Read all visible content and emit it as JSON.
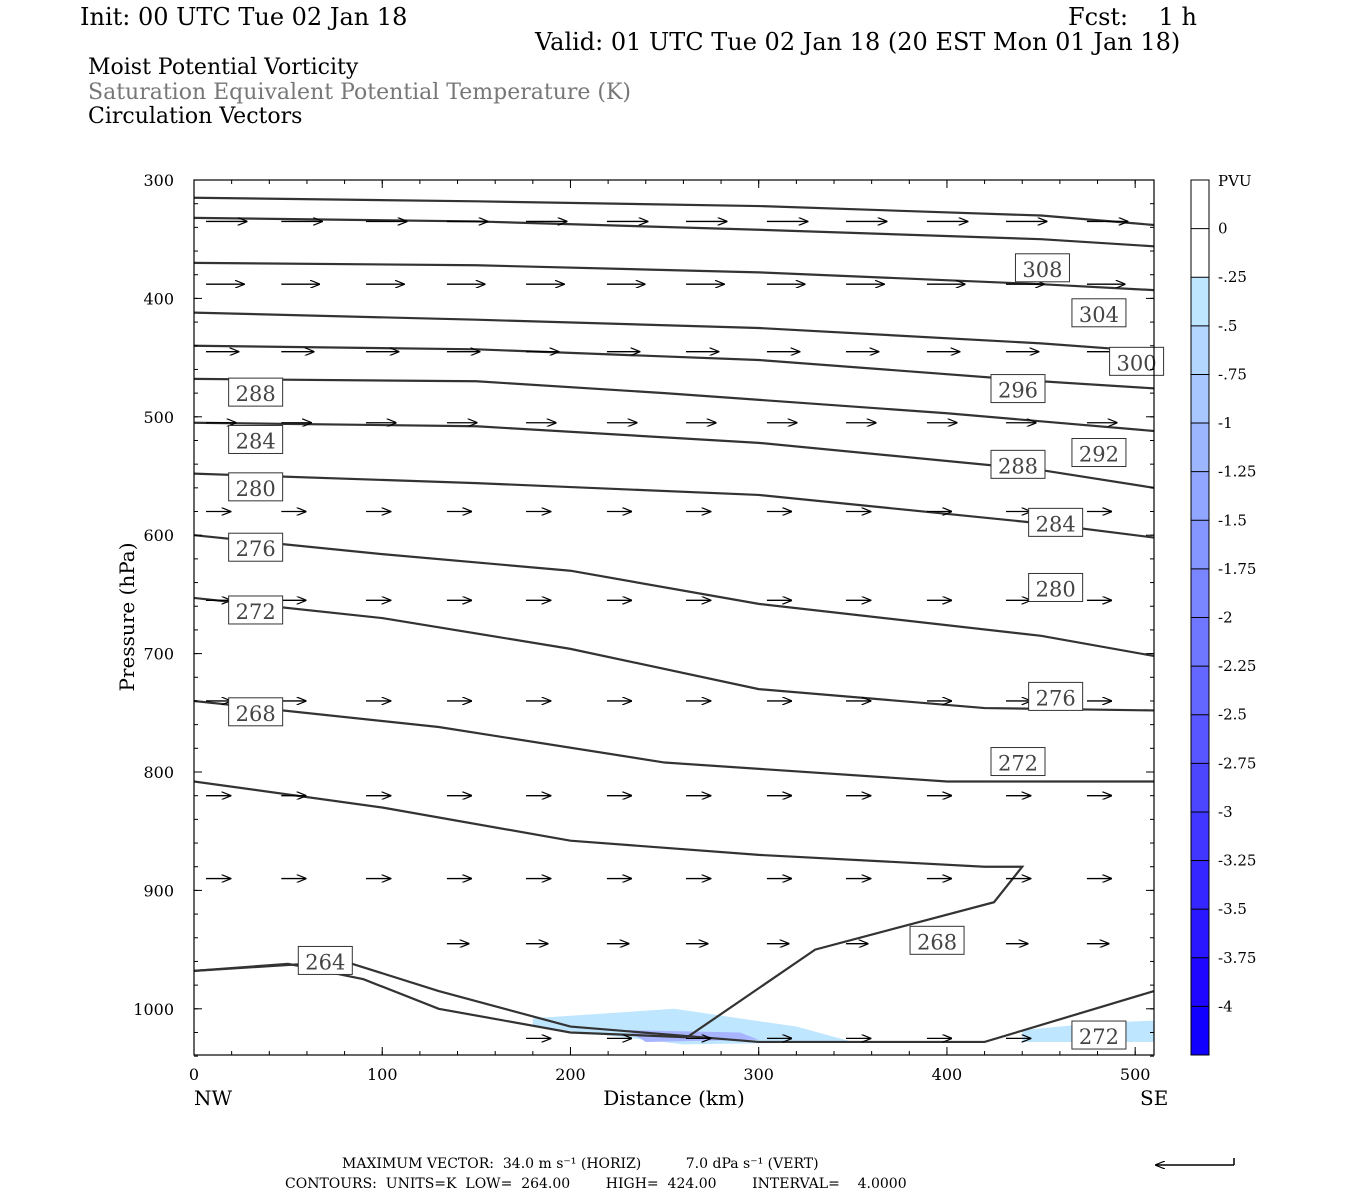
{
  "header": {
    "init": "Init: 00 UTC Tue 02 Jan 18",
    "fcst": "Fcst:    1 h",
    "valid": "Valid: 01 UTC Tue 02 Jan 18 (20 EST Mon 01 Jan 18)",
    "legend_lines": [
      {
        "text": "Moist Potential Vorticity",
        "color": "#000000"
      },
      {
        "text": "Saturation Equivalent Potential Temperature (K)",
        "color": "#777777"
      },
      {
        "text": "Circulation Vectors",
        "color": "#000000"
      }
    ]
  },
  "footer": {
    "max_vector": "MAXIMUM VECTOR:  34.0 m s⁻¹ (HORIZ)          7.0 dPa s⁻¹ (VERT)",
    "contours": "CONTOURS:  UNITS=K  LOW=  264.00        HIGH=  424.00        INTERVAL=    4.0000"
  },
  "chart_data": {
    "type": "line",
    "xlabel": "Distance (km)",
    "ylabel": "Pressure (hPa)",
    "xlim": [
      0,
      510
    ],
    "ylim": [
      300,
      1040
    ],
    "y_inverted": true,
    "x_ticks": [
      0,
      100,
      200,
      300,
      400,
      500
    ],
    "y_ticks": [
      300,
      400,
      500,
      600,
      700,
      800,
      900,
      1000
    ],
    "x_end_labels": {
      "left": "NW",
      "right": "SE"
    },
    "theta_e_contours": [
      {
        "label": "",
        "points": [
          [
            0,
            315
          ],
          [
            150,
            318
          ],
          [
            300,
            322
          ],
          [
            450,
            330
          ],
          [
            510,
            338
          ]
        ]
      },
      {
        "label": "",
        "points": [
          [
            0,
            332
          ],
          [
            150,
            335
          ],
          [
            300,
            342
          ],
          [
            450,
            350
          ],
          [
            510,
            356
          ]
        ]
      },
      {
        "label": "308",
        "points": [
          [
            0,
            370
          ],
          [
            150,
            372
          ],
          [
            300,
            378
          ],
          [
            450,
            388
          ],
          [
            510,
            393
          ]
        ]
      },
      {
        "label": "304",
        "points": [
          [
            0,
            412
          ],
          [
            150,
            418
          ],
          [
            300,
            425
          ],
          [
            450,
            438
          ],
          [
            510,
            445
          ]
        ]
      },
      {
        "label": "300",
        "points": [
          [
            0,
            440
          ],
          [
            150,
            443
          ],
          [
            300,
            452
          ],
          [
            450,
            470
          ],
          [
            510,
            476
          ]
        ]
      },
      {
        "label": "296",
        "points": [
          [
            0,
            468
          ],
          [
            150,
            470
          ],
          [
            250,
            480
          ],
          [
            400,
            497
          ],
          [
            510,
            512
          ]
        ]
      },
      {
        "label": "292",
        "points": [
          [
            0,
            505
          ],
          [
            150,
            508
          ],
          [
            300,
            522
          ],
          [
            450,
            545
          ],
          [
            510,
            560
          ]
        ]
      },
      {
        "label": "288",
        "points": [
          [
            0,
            548
          ],
          [
            150,
            556
          ],
          [
            300,
            566
          ],
          [
            450,
            590
          ],
          [
            510,
            602
          ]
        ]
      },
      {
        "label": "284",
        "points": [
          [
            0,
            600
          ],
          [
            100,
            616
          ],
          [
            200,
            630
          ],
          [
            300,
            658
          ],
          [
            450,
            685
          ],
          [
            510,
            702
          ]
        ]
      },
      {
        "label": "280",
        "points": [
          [
            0,
            653
          ],
          [
            100,
            670
          ],
          [
            200,
            696
          ],
          [
            300,
            730
          ],
          [
            420,
            746
          ],
          [
            510,
            748
          ]
        ]
      },
      {
        "label": "276",
        "points": [
          [
            0,
            740
          ],
          [
            130,
            762
          ],
          [
            250,
            792
          ],
          [
            400,
            808
          ],
          [
            510,
            808
          ]
        ]
      },
      {
        "label": "272",
        "points": [
          [
            0,
            808
          ],
          [
            100,
            830
          ],
          [
            200,
            858
          ],
          [
            300,
            870
          ],
          [
            420,
            880
          ],
          [
            440,
            880
          ],
          [
            425,
            910
          ],
          [
            330,
            950
          ],
          [
            262,
            1024
          ]
        ]
      },
      {
        "label": "268",
        "points": [
          [
            0,
            968
          ],
          [
            80,
            960
          ],
          [
            130,
            985
          ],
          [
            200,
            1015
          ],
          [
            300,
            1028
          ],
          [
            420,
            1028
          ],
          [
            510,
            985
          ]
        ]
      },
      {
        "label": "264",
        "points": [
          [
            0,
            968
          ],
          [
            50,
            962
          ],
          [
            90,
            975
          ],
          [
            130,
            1000
          ],
          [
            200,
            1020
          ],
          [
            262,
            1024
          ]
        ]
      }
    ],
    "theta_e_labels": [
      {
        "text": "288",
        "x": 20,
        "p": 480
      },
      {
        "text": "284",
        "x": 20,
        "p": 520
      },
      {
        "text": "280",
        "x": 20,
        "p": 560
      },
      {
        "text": "276",
        "x": 20,
        "p": 611
      },
      {
        "text": "272",
        "x": 20,
        "p": 664
      },
      {
        "text": "268",
        "x": 20,
        "p": 750
      },
      {
        "text": "264",
        "x": 57,
        "p": 960
      },
      {
        "text": "308",
        "x": 438,
        "p": 375
      },
      {
        "text": "304",
        "x": 468,
        "p": 413
      },
      {
        "text": "300",
        "x": 488,
        "p": 454
      },
      {
        "text": "296",
        "x": 425,
        "p": 477
      },
      {
        "text": "292",
        "x": 468,
        "p": 531
      },
      {
        "text": "288",
        "x": 425,
        "p": 541
      },
      {
        "text": "284",
        "x": 445,
        "p": 590
      },
      {
        "text": "280",
        "x": 445,
        "p": 645
      },
      {
        "text": "276",
        "x": 445,
        "p": 737
      },
      {
        "text": "272",
        "x": 425,
        "p": 792
      },
      {
        "text": "268",
        "x": 382,
        "p": 943
      },
      {
        "text": "272",
        "x": 468,
        "p": 1023
      }
    ],
    "vector_rows": [
      {
        "p": 335,
        "xs": [
          0,
          40,
          85,
          128,
          170,
          213,
          255,
          298,
          340,
          383,
          425,
          468
        ],
        "u": 30,
        "w": 0
      },
      {
        "p": 388,
        "xs": [
          0,
          40,
          85,
          128,
          170,
          213,
          255,
          298,
          340,
          383,
          425,
          468
        ],
        "u": 28,
        "w": 0
      },
      {
        "p": 445,
        "xs": [
          0,
          40,
          85,
          128,
          170,
          213,
          255,
          298,
          340,
          383,
          425,
          468
        ],
        "u": 24,
        "w": 0
      },
      {
        "p": 505,
        "xs": [
          0,
          40,
          85,
          128,
          170,
          213,
          255,
          298,
          340,
          383,
          425,
          468
        ],
        "u": 22,
        "w": 0
      },
      {
        "p": 580,
        "xs": [
          0,
          40,
          85,
          128,
          170,
          213,
          255,
          298,
          340,
          383,
          425,
          468
        ],
        "u": 18,
        "w": 0
      },
      {
        "p": 655,
        "xs": [
          0,
          40,
          85,
          128,
          170,
          213,
          255,
          298,
          340,
          383,
          425,
          468
        ],
        "u": 18,
        "w": 0
      },
      {
        "p": 740,
        "xs": [
          0,
          40,
          85,
          128,
          170,
          213,
          255,
          298,
          340,
          383,
          425,
          468
        ],
        "u": 18,
        "w": 0
      },
      {
        "p": 820,
        "xs": [
          0,
          40,
          85,
          128,
          170,
          213,
          255,
          298,
          340,
          383,
          425,
          468
        ],
        "u": 18,
        "w": 0
      },
      {
        "p": 890,
        "xs": [
          0,
          40,
          85,
          128,
          170,
          213,
          255,
          298,
          340,
          383,
          425,
          468
        ],
        "u": 18,
        "w": 0
      },
      {
        "p": 945,
        "xs": [
          128,
          170,
          213,
          255,
          298,
          340,
          383,
          425,
          468
        ],
        "u": 16,
        "w": 0
      },
      {
        "p": 1025,
        "xs": [
          170,
          213,
          255,
          298,
          340,
          383,
          425,
          468
        ],
        "u": 18,
        "w": 0
      }
    ],
    "mpv_shading": [
      {
        "color": "#bfe6ff",
        "points": [
          [
            180,
            1008
          ],
          [
            255,
            1000
          ],
          [
            320,
            1015
          ],
          [
            350,
            1028
          ],
          [
            260,
            1030
          ],
          [
            180,
            1015
          ]
        ]
      },
      {
        "color": "#bfe6ff",
        "points": [
          [
            440,
            1018
          ],
          [
            480,
            1012
          ],
          [
            510,
            1010
          ],
          [
            510,
            1028
          ],
          [
            440,
            1028
          ]
        ]
      },
      {
        "color": "#a8b4ff",
        "points": [
          [
            230,
            1018
          ],
          [
            290,
            1020
          ],
          [
            300,
            1026
          ],
          [
            240,
            1028
          ]
        ]
      }
    ],
    "colorbar": {
      "title": "PVU",
      "ticks": [
        "0",
        "-.25",
        "-.5",
        "-.75",
        "-1",
        "-1.25",
        "-1.5",
        "-1.75",
        "-2",
        "-2.25",
        "-2.5",
        "-2.75",
        "-3",
        "-3.25",
        "-3.5",
        "-3.75",
        "-4"
      ],
      "colors": [
        "#ffffff",
        "#ffffff",
        "#bfe6ff",
        "#b3d6ff",
        "#a8c6ff",
        "#9cb6ff",
        "#91a6ff",
        "#8596ff",
        "#7a86ff",
        "#6f76ff",
        "#6366ff",
        "#5856ff",
        "#4c46ff",
        "#4136ff",
        "#3526ff",
        "#2a16ff",
        "#1e06ff",
        "#1200ff"
      ]
    }
  }
}
